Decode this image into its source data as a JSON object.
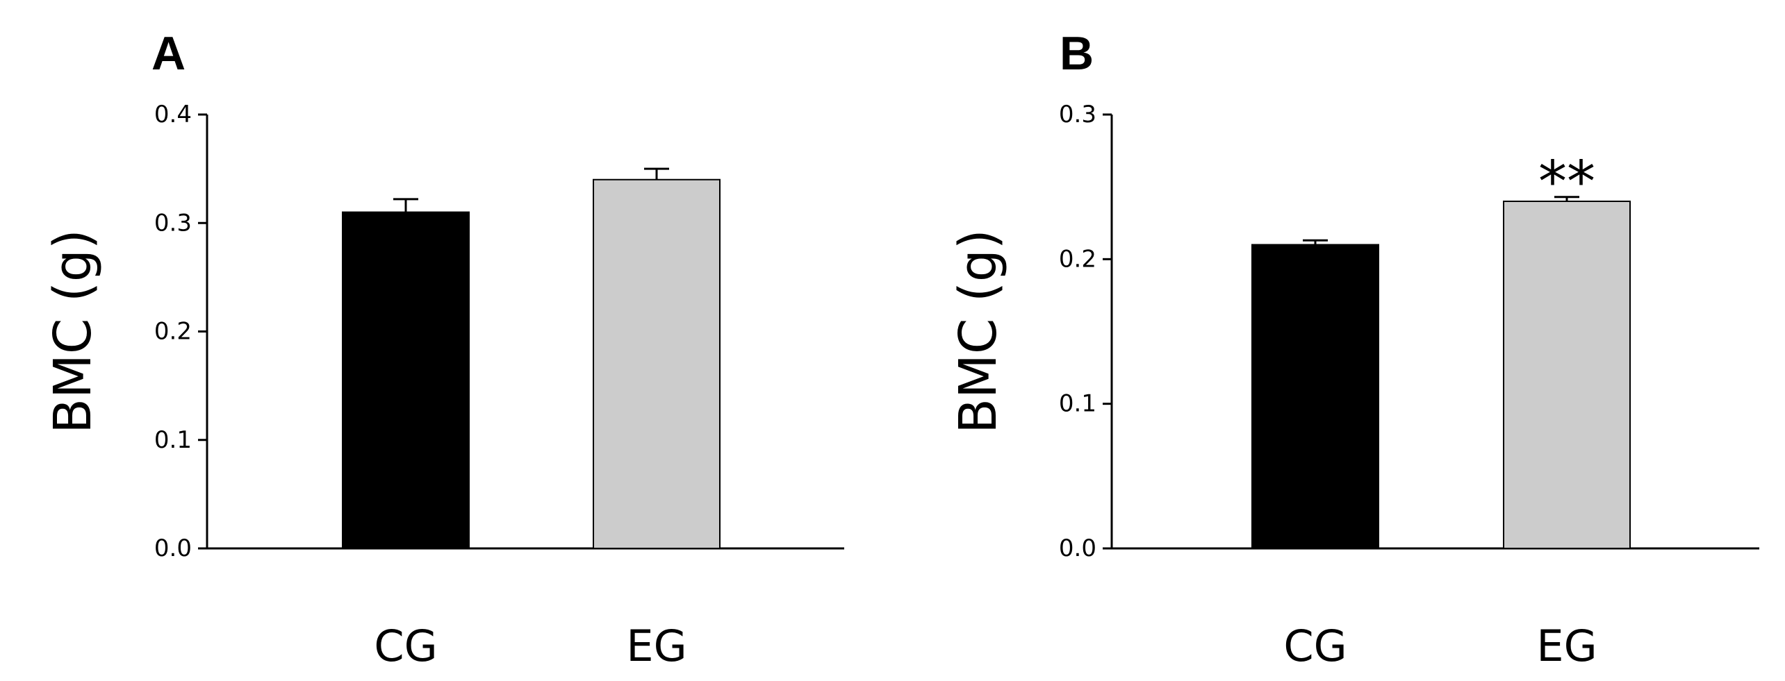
{
  "chart_data": [
    {
      "type": "bar",
      "panel": "A",
      "ylabel": "BMC (g)",
      "xlabel": "",
      "ylim": [
        0.0,
        0.4
      ],
      "yticks": [
        "0.0",
        "0.1",
        "0.2",
        "0.3",
        "0.4"
      ],
      "categories": [
        "CG",
        "EG"
      ],
      "values": [
        0.31,
        0.34
      ],
      "errors": [
        0.012,
        0.01
      ],
      "colors": [
        "#000000",
        "#cccccc"
      ],
      "annotations": [
        "",
        ""
      ],
      "grid": false
    },
    {
      "type": "bar",
      "panel": "B",
      "ylabel": "BMC (g)",
      "xlabel": "",
      "ylim": [
        0.0,
        0.3
      ],
      "yticks": [
        "0.0",
        "0.1",
        "0.2",
        "0.3"
      ],
      "categories": [
        "CG",
        "EG"
      ],
      "values": [
        0.21,
        0.24
      ],
      "errors": [
        0.003,
        0.003
      ],
      "colors": [
        "#000000",
        "#cccccc"
      ],
      "annotations": [
        "",
        "**"
      ],
      "grid": false
    }
  ]
}
